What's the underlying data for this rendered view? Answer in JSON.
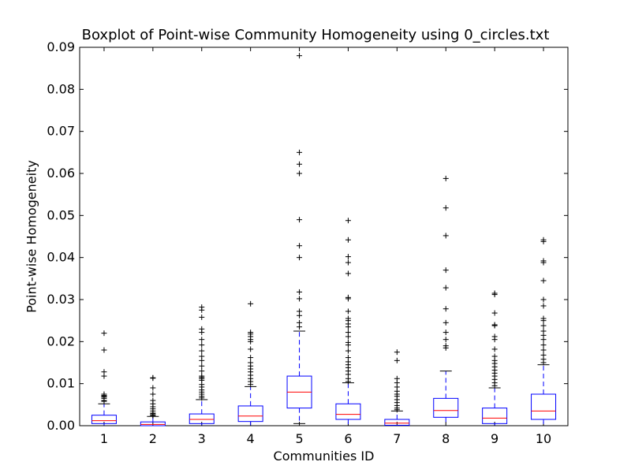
{
  "chart_data": {
    "type": "boxplot",
    "title": "Boxplot of Point-wise Community Homogeneity using 0_circles.txt",
    "xlabel": "Communities ID",
    "ylabel": "Point-wise Homogeneity",
    "ylim": [
      0,
      0.09
    ],
    "yticks": [
      "0.00",
      "0.01",
      "0.02",
      "0.03",
      "0.04",
      "0.05",
      "0.06",
      "0.07",
      "0.08",
      "0.09"
    ],
    "categories": [
      "1",
      "2",
      "3",
      "4",
      "5",
      "6",
      "7",
      "8",
      "9",
      "10"
    ],
    "grid": false,
    "colors": {
      "box": "#0000ff",
      "median": "#ff0000",
      "whisker_cap": "#000000",
      "flier": "#000000"
    },
    "boxes": [
      {
        "id": "1",
        "whislo": 0.0,
        "q1": 0.0005,
        "med": 0.0012,
        "q3": 0.0025,
        "whishi": 0.0052,
        "fliers": [
          0.022,
          0.018,
          0.0128,
          0.0118,
          0.0075,
          0.0072,
          0.007,
          0.0068,
          0.0065,
          0.006,
          0.0058
        ]
      },
      {
        "id": "2",
        "whislo": 0.0,
        "q1": 0.0,
        "med": 0.0003,
        "q3": 0.0009,
        "whishi": 0.0022,
        "fliers": [
          0.0114,
          0.0113,
          0.009,
          0.0075,
          0.006,
          0.0052,
          0.0045,
          0.004,
          0.0035,
          0.003,
          0.0028,
          0.0025,
          0.0024
        ]
      },
      {
        "id": "3",
        "whislo": 0.0,
        "q1": 0.0005,
        "med": 0.0015,
        "q3": 0.0028,
        "whishi": 0.0062,
        "fliers": [
          0.0282,
          0.0275,
          0.0258,
          0.023,
          0.0222,
          0.0205,
          0.0192,
          0.0178,
          0.0165,
          0.0155,
          0.0142,
          0.013,
          0.0118,
          0.0115,
          0.0112,
          0.0108,
          0.0098,
          0.0092,
          0.0085,
          0.008,
          0.0075,
          0.007,
          0.0066
        ]
      },
      {
        "id": "4",
        "whislo": 0.0,
        "q1": 0.001,
        "med": 0.0023,
        "q3": 0.0047,
        "whishi": 0.0093,
        "fliers": [
          0.029,
          0.0222,
          0.0218,
          0.0212,
          0.0205,
          0.02,
          0.0182,
          0.0162,
          0.015,
          0.0142,
          0.0135,
          0.0128,
          0.012,
          0.0112,
          0.0105,
          0.0098
        ]
      },
      {
        "id": "5",
        "whislo": 0.0005,
        "q1": 0.0042,
        "med": 0.008,
        "q3": 0.0118,
        "whishi": 0.0225,
        "fliers": [
          0.088,
          0.065,
          0.0622,
          0.06,
          0.049,
          0.0428,
          0.04,
          0.0318,
          0.0302,
          0.0272,
          0.0262,
          0.0245,
          0.0235
        ]
      },
      {
        "id": "6",
        "whislo": 0.0,
        "q1": 0.0015,
        "med": 0.0027,
        "q3": 0.0052,
        "whishi": 0.0102,
        "fliers": [
          0.0488,
          0.0442,
          0.0402,
          0.0388,
          0.0362,
          0.0305,
          0.0302,
          0.0272,
          0.0255,
          0.025,
          0.0242,
          0.0235,
          0.0222,
          0.0212,
          0.0198,
          0.0192,
          0.0178,
          0.0162,
          0.0152,
          0.0145,
          0.0138,
          0.013,
          0.0122,
          0.0112,
          0.0105
        ]
      },
      {
        "id": "7",
        "whislo": 0.0,
        "q1": 0.0001,
        "med": 0.0006,
        "q3": 0.0015,
        "whishi": 0.0035,
        "fliers": [
          0.0175,
          0.0155,
          0.0112,
          0.0102,
          0.0092,
          0.0082,
          0.0075,
          0.007,
          0.0062,
          0.0055,
          0.0048,
          0.0042,
          0.0038
        ]
      },
      {
        "id": "8",
        "whislo": 0.0,
        "q1": 0.002,
        "med": 0.0036,
        "q3": 0.0065,
        "whishi": 0.013,
        "fliers": [
          0.0588,
          0.0518,
          0.0452,
          0.037,
          0.0328,
          0.0278,
          0.0245,
          0.0222,
          0.0205,
          0.019,
          0.0185
        ]
      },
      {
        "id": "9",
        "whislo": 0.0,
        "q1": 0.0005,
        "med": 0.0018,
        "q3": 0.0042,
        "whishi": 0.009,
        "fliers": [
          0.0315,
          0.0312,
          0.0268,
          0.024,
          0.0238,
          0.0212,
          0.0205,
          0.0182,
          0.0165,
          0.0155,
          0.0148,
          0.014,
          0.0132,
          0.0125,
          0.0118,
          0.011,
          0.0102,
          0.0095
        ]
      },
      {
        "id": "10",
        "whislo": 0.0,
        "q1": 0.0015,
        "med": 0.0035,
        "q3": 0.0075,
        "whishi": 0.0145,
        "fliers": [
          0.0442,
          0.0438,
          0.0392,
          0.0388,
          0.0345,
          0.03,
          0.0285,
          0.0255,
          0.025,
          0.0238,
          0.0225,
          0.0215,
          0.0205,
          0.0192,
          0.018,
          0.0168,
          0.0158,
          0.015
        ]
      }
    ]
  }
}
